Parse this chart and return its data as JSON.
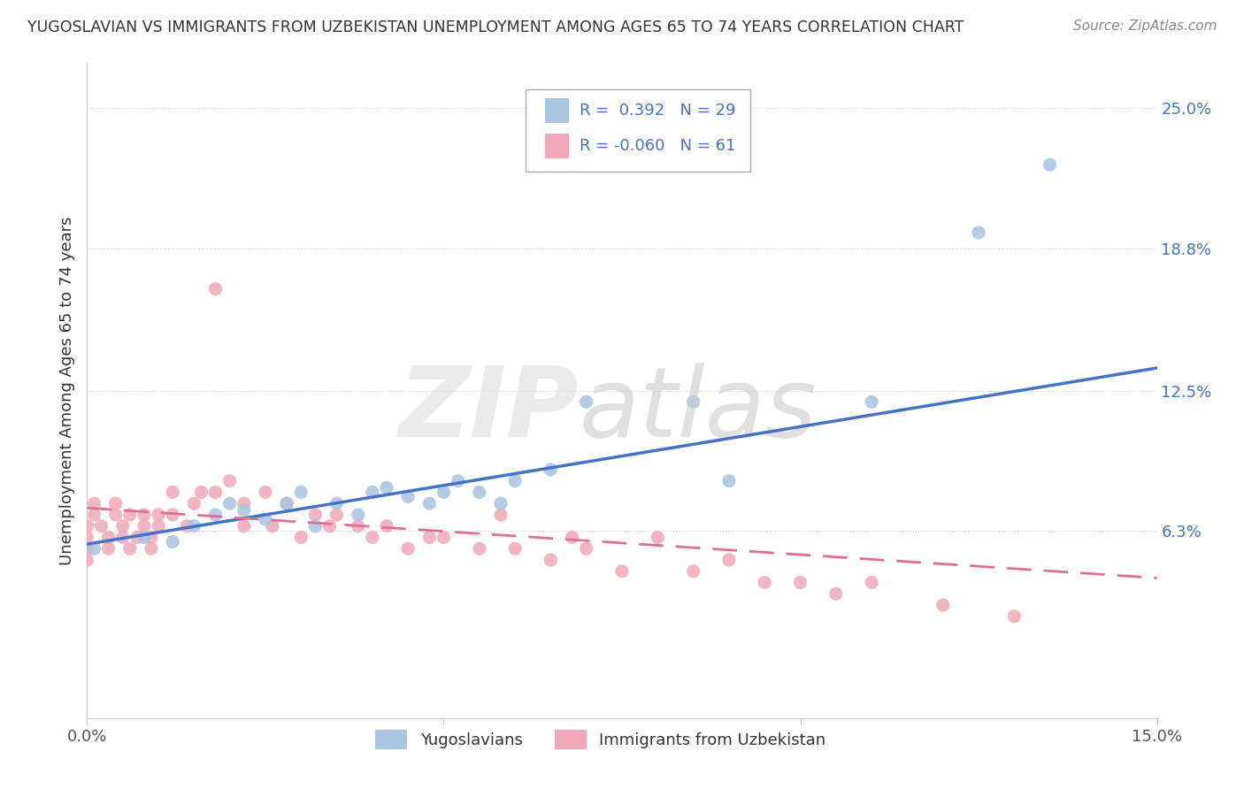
{
  "title": "YUGOSLAVIAN VS IMMIGRANTS FROM UZBEKISTAN UNEMPLOYMENT AMONG AGES 65 TO 74 YEARS CORRELATION CHART",
  "source": "Source: ZipAtlas.com",
  "ylabel": "Unemployment Among Ages 65 to 74 years",
  "xlim": [
    0.0,
    0.15
  ],
  "ylim": [
    -0.02,
    0.27
  ],
  "xticks": [
    0.0,
    0.05,
    0.1,
    0.15
  ],
  "xticklabels": [
    "0.0%",
    "",
    "",
    "15.0%"
  ],
  "ytick_right_vals": [
    0.063,
    0.125,
    0.188,
    0.25
  ],
  "ytick_right_labels": [
    "6.3%",
    "12.5%",
    "18.8%",
    "25.0%"
  ],
  "legend_labels": [
    "Yugoslavians",
    "Immigrants from Uzbekistan"
  ],
  "R_yugo": 0.392,
  "N_yugo": 29,
  "R_uzbek": -0.06,
  "N_uzbek": 61,
  "yugo_color": "#a8c4e0",
  "uzbek_color": "#f0a8b8",
  "trendline_yugo_color": "#4472c4",
  "trendline_uzbek_color": "#e07090",
  "yugo_scatter_x": [
    0.001,
    0.008,
    0.012,
    0.015,
    0.018,
    0.02,
    0.022,
    0.025,
    0.028,
    0.03,
    0.032,
    0.035,
    0.038,
    0.04,
    0.042,
    0.045,
    0.048,
    0.05,
    0.052,
    0.055,
    0.058,
    0.06,
    0.065,
    0.07,
    0.085,
    0.09,
    0.11,
    0.125,
    0.135
  ],
  "yugo_scatter_y": [
    0.055,
    0.06,
    0.058,
    0.065,
    0.07,
    0.075,
    0.072,
    0.068,
    0.075,
    0.08,
    0.065,
    0.075,
    0.07,
    0.08,
    0.082,
    0.078,
    0.075,
    0.08,
    0.085,
    0.08,
    0.075,
    0.085,
    0.09,
    0.12,
    0.12,
    0.085,
    0.12,
    0.195,
    0.225
  ],
  "uzbek_scatter_x": [
    0.0,
    0.0,
    0.0,
    0.0,
    0.001,
    0.001,
    0.002,
    0.003,
    0.003,
    0.004,
    0.004,
    0.005,
    0.005,
    0.006,
    0.006,
    0.007,
    0.008,
    0.008,
    0.009,
    0.009,
    0.01,
    0.01,
    0.012,
    0.012,
    0.014,
    0.015,
    0.016,
    0.018,
    0.018,
    0.02,
    0.022,
    0.022,
    0.025,
    0.026,
    0.028,
    0.03,
    0.032,
    0.034,
    0.035,
    0.038,
    0.04,
    0.042,
    0.045,
    0.048,
    0.05,
    0.055,
    0.058,
    0.06,
    0.065,
    0.068,
    0.07,
    0.075,
    0.08,
    0.085,
    0.09,
    0.095,
    0.1,
    0.105,
    0.11,
    0.12,
    0.13
  ],
  "uzbek_scatter_y": [
    0.05,
    0.055,
    0.06,
    0.065,
    0.07,
    0.075,
    0.065,
    0.06,
    0.055,
    0.07,
    0.075,
    0.06,
    0.065,
    0.07,
    0.055,
    0.06,
    0.065,
    0.07,
    0.055,
    0.06,
    0.07,
    0.065,
    0.08,
    0.07,
    0.065,
    0.075,
    0.08,
    0.17,
    0.08,
    0.085,
    0.075,
    0.065,
    0.08,
    0.065,
    0.075,
    0.06,
    0.07,
    0.065,
    0.07,
    0.065,
    0.06,
    0.065,
    0.055,
    0.06,
    0.06,
    0.055,
    0.07,
    0.055,
    0.05,
    0.06,
    0.055,
    0.045,
    0.06,
    0.045,
    0.05,
    0.04,
    0.04,
    0.035,
    0.04,
    0.03,
    0.025
  ],
  "yugo_trend_x0": 0.0,
  "yugo_trend_y0": 0.057,
  "yugo_trend_x1": 0.15,
  "yugo_trend_y1": 0.135,
  "uzbek_trend_x0": 0.0,
  "uzbek_trend_y0": 0.073,
  "uzbek_trend_x1": 0.15,
  "uzbek_trend_y1": 0.042
}
